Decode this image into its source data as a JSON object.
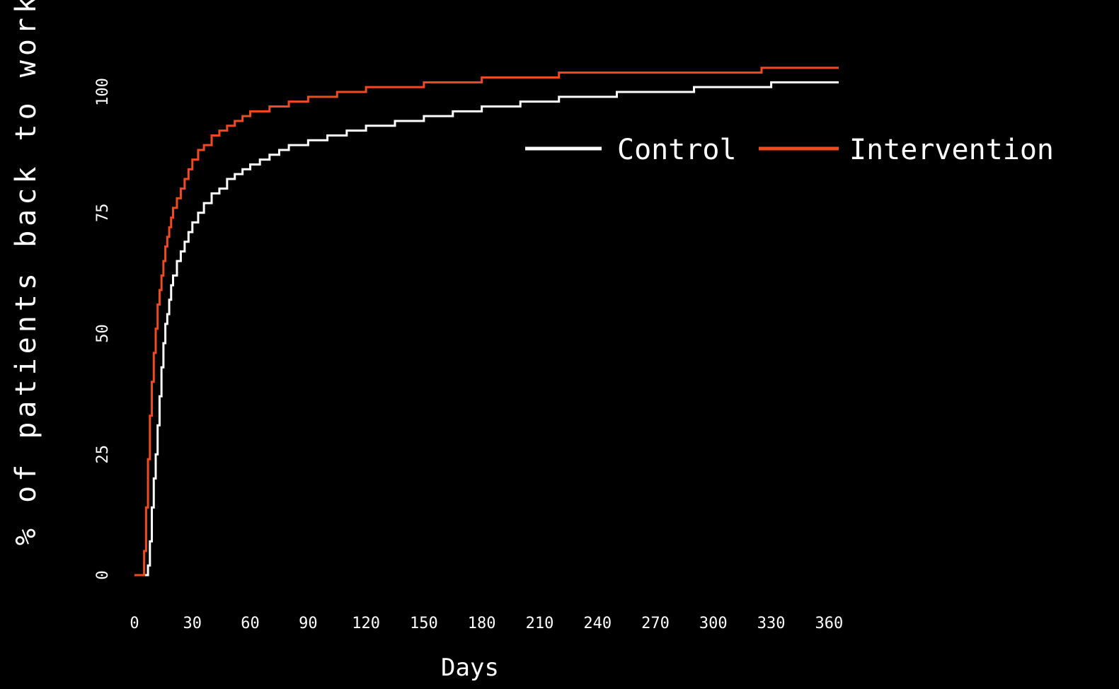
{
  "chart_data": {
    "type": "line",
    "title": "",
    "xlabel": "Days",
    "ylabel": "% of patients back to work",
    "xlim": [
      0,
      365
    ],
    "ylim": [
      0,
      100
    ],
    "x_ticks": [
      "0",
      "30",
      "60",
      "90",
      "120",
      "150",
      "180",
      "210",
      "240",
      "270",
      "300",
      "330",
      "360"
    ],
    "y_ticks": [
      "0",
      "25",
      "50",
      "75",
      "100"
    ],
    "grid": false,
    "legend_position": "right",
    "background": "#000000",
    "series": [
      {
        "name": "Control",
        "color": "#ffffff",
        "step": true,
        "points": [
          [
            0,
            0
          ],
          [
            6,
            0
          ],
          [
            7,
            2
          ],
          [
            8,
            7
          ],
          [
            9,
            14
          ],
          [
            10,
            20
          ],
          [
            11,
            25
          ],
          [
            12,
            31
          ],
          [
            13,
            37
          ],
          [
            14,
            43
          ],
          [
            15,
            48
          ],
          [
            16,
            52
          ],
          [
            17,
            54
          ],
          [
            18,
            57
          ],
          [
            19,
            60
          ],
          [
            20,
            62
          ],
          [
            22,
            65
          ],
          [
            24,
            67
          ],
          [
            26,
            69
          ],
          [
            28,
            71
          ],
          [
            30,
            73
          ],
          [
            33,
            75
          ],
          [
            36,
            77
          ],
          [
            40,
            79
          ],
          [
            44,
            80
          ],
          [
            48,
            82
          ],
          [
            52,
            83
          ],
          [
            56,
            84
          ],
          [
            60,
            85
          ],
          [
            65,
            86
          ],
          [
            70,
            87
          ],
          [
            75,
            88
          ],
          [
            80,
            89
          ],
          [
            90,
            90
          ],
          [
            100,
            91
          ],
          [
            110,
            92
          ],
          [
            120,
            93
          ],
          [
            135,
            94
          ],
          [
            150,
            95
          ],
          [
            165,
            96
          ],
          [
            180,
            97
          ],
          [
            200,
            98
          ],
          [
            220,
            99
          ],
          [
            250,
            100
          ],
          [
            290,
            101
          ],
          [
            330,
            102
          ],
          [
            365,
            102
          ]
        ]
      },
      {
        "name": "Intervention",
        "color": "#ef4b22",
        "step": true,
        "points": [
          [
            0,
            0
          ],
          [
            4,
            0
          ],
          [
            5,
            5
          ],
          [
            6,
            14
          ],
          [
            7,
            24
          ],
          [
            8,
            33
          ],
          [
            9,
            40
          ],
          [
            10,
            46
          ],
          [
            11,
            51
          ],
          [
            12,
            56
          ],
          [
            13,
            59
          ],
          [
            14,
            62
          ],
          [
            15,
            65
          ],
          [
            16,
            68
          ],
          [
            17,
            70
          ],
          [
            18,
            72
          ],
          [
            19,
            74
          ],
          [
            20,
            76
          ],
          [
            22,
            78
          ],
          [
            24,
            80
          ],
          [
            26,
            82
          ],
          [
            28,
            84
          ],
          [
            30,
            86
          ],
          [
            33,
            88
          ],
          [
            36,
            89
          ],
          [
            40,
            91
          ],
          [
            44,
            92
          ],
          [
            48,
            93
          ],
          [
            52,
            94
          ],
          [
            56,
            95
          ],
          [
            60,
            96
          ],
          [
            70,
            97
          ],
          [
            80,
            98
          ],
          [
            90,
            99
          ],
          [
            105,
            100
          ],
          [
            120,
            101
          ],
          [
            150,
            102
          ],
          [
            180,
            103
          ],
          [
            220,
            104
          ],
          [
            260,
            104
          ],
          [
            300,
            104
          ],
          [
            325,
            105
          ],
          [
            365,
            105
          ]
        ]
      }
    ]
  }
}
